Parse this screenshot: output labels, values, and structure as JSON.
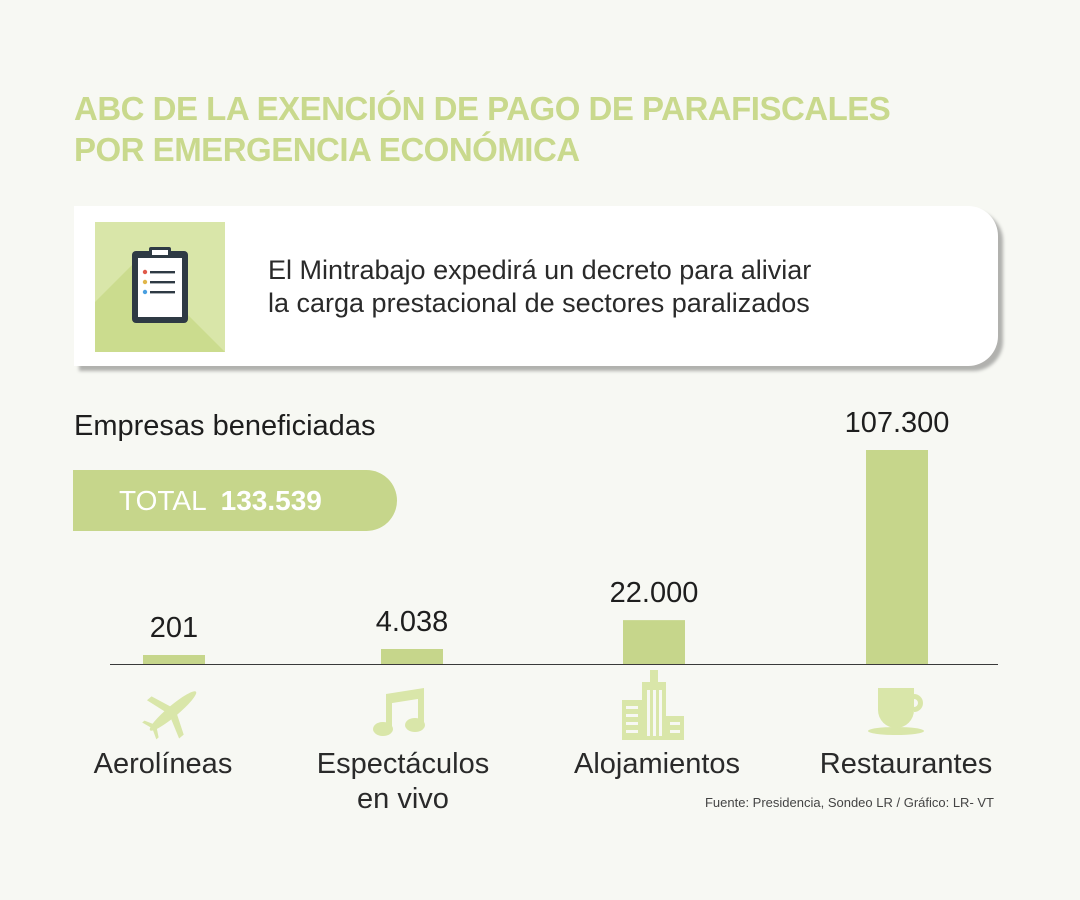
{
  "title_line1": "ABC DE LA EXENCIÓN DE PAGO DE PARAFISCALES",
  "title_line2": "POR EMERGENCIA ECONÓMICA",
  "card": {
    "line1": "El Mintrabajo expedirá un decreto para aliviar",
    "line2": "la carga prestacional de sectores paralizados",
    "icon": "clipboard-icon"
  },
  "subtitle": "Empresas beneficiadas",
  "total": {
    "label": "TOTAL",
    "value": "133.539"
  },
  "colors": {
    "accent": "#c6d68b",
    "accent_light": "#d9e6a9",
    "title": "#c9d98d",
    "background": "#f7f8f3",
    "icon_dark": "#2e3a44"
  },
  "chart_data": {
    "type": "bar",
    "categories": [
      "Aerolíneas",
      "Espectáculos en vivo",
      "Alojamientos",
      "Restaurantes"
    ],
    "category_lines": [
      [
        "Aerolíneas"
      ],
      [
        "Espectáculos",
        "en vivo"
      ],
      [
        "Alojamientos"
      ],
      [
        "Restaurantes"
      ]
    ],
    "values": [
      201,
      4038,
      22000,
      107300
    ],
    "value_labels": [
      "201",
      "4.038",
      "22.000",
      "107.300"
    ],
    "icons": [
      "airplane-icon",
      "music-note-icon",
      "buildings-icon",
      "coffee-cup-icon"
    ],
    "ylim": [
      0,
      107300
    ],
    "grid": false,
    "legend": "none"
  },
  "source": "Fuente: Presidencia,  Sondeo LR  / Gráfico: LR-  VT"
}
